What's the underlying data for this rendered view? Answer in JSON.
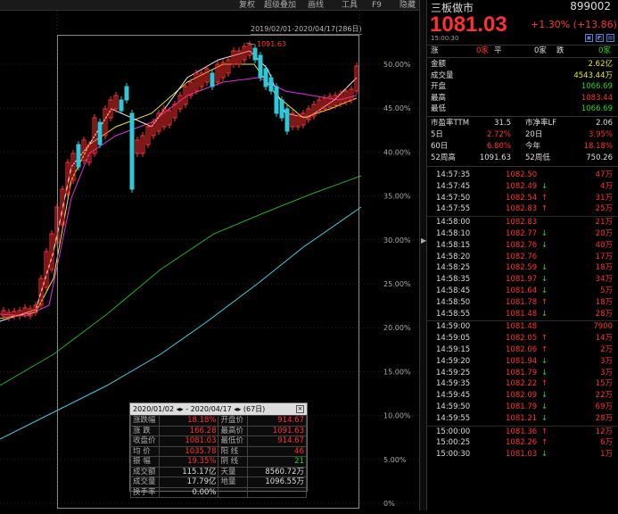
{
  "toolbar": {
    "items": [
      "复权",
      "超级叠加",
      "画线",
      "工具",
      "F9",
      "隐藏"
    ]
  },
  "chart_overlay": {
    "range": "2019/02/01-2020/04/17(286日)",
    "peak_label": "1091.63"
  },
  "axis_pct": [
    "50.00%",
    "45.00%",
    "40.00%",
    "35.00%",
    "30.00%",
    "25.00%",
    "20.00%",
    "15.00%",
    "10.00%",
    "5.00%",
    "0%"
  ],
  "stats": {
    "header": "2020/01/02 ◂▸ - 2020/04/17 ◂▸ (67日)",
    "rows": [
      [
        "涨跌幅",
        "18.18%",
        "开盘价",
        "914.67"
      ],
      [
        "涨  跌",
        "166.28",
        "最高价",
        "1091.63"
      ],
      [
        "收盘价",
        "1081.03",
        "最低价",
        "914.67"
      ],
      [
        "均  价",
        "1035.78",
        "阳  线",
        "46"
      ],
      [
        "振  幅",
        "19.35%",
        "阴  线",
        "21"
      ],
      [
        "成交额",
        "115.17亿",
        "天量",
        "8560.72万"
      ],
      [
        "成交量",
        "17.79亿",
        "地量",
        "1096.55万"
      ],
      [
        "换手率",
        "0.00%",
        "",
        ""
      ]
    ]
  },
  "panel": {
    "name": "三板做市",
    "code": "899002",
    "price": "1081.03",
    "change": "+1.30% (+13.86)",
    "time": "15:00:30",
    "updown": {
      "up_label": "涨",
      "up_count": "0家",
      "flat_label": "平",
      "flat_count": "0家",
      "down_label": "跌",
      "down_count": "0家"
    },
    "quote": [
      {
        "label": "金额",
        "value": "2.62亿"
      },
      {
        "label": "成交量",
        "value": "4543.44万"
      },
      {
        "label": "开盘",
        "value": "1066.69"
      },
      {
        "label": "最高",
        "value": "1083.44"
      },
      {
        "label": "最低",
        "value": "1066.69"
      }
    ],
    "ratios": [
      {
        "l1": "市盈率TTM",
        "v1": "31.5",
        "l2": "市净率LF",
        "v2": "2.06"
      },
      {
        "l1": "5日",
        "v1": "2.72%",
        "l2": "20日",
        "v2": "3.95%"
      },
      {
        "l1": "60日",
        "v1": "6.80%",
        "l2": "今年",
        "v2": "18.18%"
      },
      {
        "l1": "52周高",
        "v1": "1091.63",
        "l2": "52周低",
        "v2": "750.26"
      }
    ],
    "ticks": [
      [
        "14:57:35",
        "1082.50",
        "",
        "47万"
      ],
      [
        "14:57:45",
        "1082.49",
        "↓",
        "4万"
      ],
      [
        "14:57:50",
        "1082.54",
        "↑",
        "31万"
      ],
      [
        "14:57:55",
        "1082.83",
        "↑",
        "25万"
      ],
      [
        "14:58:00",
        "1082.83",
        "",
        "21万"
      ],
      [
        "14:58:10",
        "1082.77",
        "↓",
        "20万"
      ],
      [
        "14:58:15",
        "1082.76",
        "↓",
        "40万"
      ],
      [
        "14:58:20",
        "1082.76",
        "",
        "17万"
      ],
      [
        "14:58:25",
        "1082.59",
        "↓",
        "18万"
      ],
      [
        "14:58:35",
        "1081.97",
        "↓",
        "34万"
      ],
      [
        "14:58:45",
        "1081.64",
        "↓",
        "5万"
      ],
      [
        "14:58:50",
        "1081.78",
        "↑",
        "18万"
      ],
      [
        "14:58:55",
        "1081.48",
        "↓",
        "28万"
      ],
      [
        "14:59:00",
        "1081.48",
        "",
        "7900"
      ],
      [
        "14:59:05",
        "1082.05",
        "↑",
        "14万"
      ],
      [
        "14:59:15",
        "1082.06",
        "↑",
        "2万"
      ],
      [
        "14:59:20",
        "1081.94",
        "↓",
        "3万"
      ],
      [
        "14:59:25",
        "1081.79",
        "↓",
        "3万"
      ],
      [
        "14:59:35",
        "1082.22",
        "↑",
        "15万"
      ],
      [
        "14:59:45",
        "1082.09",
        "↓",
        "22万"
      ],
      [
        "14:59:50",
        "1081.79",
        "↓",
        "69万"
      ],
      [
        "14:59:55",
        "1081.21",
        "↓",
        "28万"
      ],
      [
        "15:00:00",
        "1081.36",
        "↑",
        "12万"
      ],
      [
        "15:00:25",
        "1082.26",
        "↑",
        "6万"
      ],
      [
        "15:00:30",
        "1081.03",
        "↓",
        "1万"
      ]
    ]
  },
  "colors": {
    "up": "#ff3030",
    "down": "#2bd22b",
    "ma5": "#eeeeee",
    "ma10": "#e8e83a",
    "ma20": "#e030e0",
    "ma60": "#20b020",
    "ma250": "#40d0e0"
  }
}
